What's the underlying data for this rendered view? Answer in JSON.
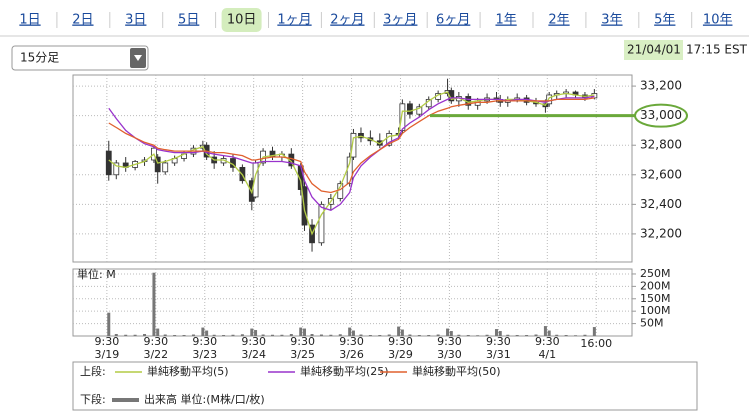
{
  "tabs": [
    "1日",
    "2日",
    "3日",
    "5日",
    "10日",
    "1ヶ月",
    "2ヶ月",
    "3ヶ月",
    "6ヶ月",
    "1年",
    "2年",
    "3年",
    "5年",
    "10年"
  ],
  "selected_tab": 4,
  "interval_select": "15分足",
  "timestamp": {
    "date": "21/04/01",
    "time": "17:15 EST"
  },
  "legend": {
    "upper_label": "上段:",
    "lower_label": "下段:"
  },
  "chart_data": [
    {
      "type": "candlestick",
      "up_color": "#ffffff",
      "down_color": "#333333",
      "grid": true,
      "highlight_tick": 4,
      "x": [
        1,
        5,
        10,
        15,
        20,
        25,
        27,
        31,
        36,
        41,
        46,
        51,
        53,
        57,
        62,
        67,
        72,
        77,
        79,
        83,
        88,
        93,
        98,
        103,
        105,
        109,
        114,
        119,
        124,
        129,
        131,
        135,
        140,
        145,
        150,
        155,
        157,
        161,
        166,
        171,
        176,
        181,
        183,
        187,
        192,
        197,
        202,
        207,
        209,
        213,
        218,
        223,
        228,
        233,
        235,
        239,
        244,
        249,
        254,
        259
      ],
      "open": [
        32760,
        32600,
        32680,
        32650,
        32690,
        32700,
        32720,
        32620,
        32680,
        32710,
        32740,
        32780,
        32800,
        32720,
        32680,
        32710,
        32650,
        32560,
        32450,
        32680,
        32760,
        32720,
        32740,
        32660,
        32520,
        32260,
        32140,
        32400,
        32440,
        32540,
        32720,
        32880,
        32850,
        32830,
        32800,
        32880,
        32900,
        33080,
        33010,
        33060,
        33110,
        33150,
        33170,
        33100,
        33130,
        33070,
        33100,
        33120,
        33110,
        33090,
        33110,
        33120,
        33090,
        33080,
        33080,
        33140,
        33150,
        33160,
        33140,
        33120
      ],
      "high": [
        32830,
        32700,
        32720,
        32700,
        32720,
        32790,
        32740,
        32700,
        32730,
        32760,
        32800,
        32830,
        32820,
        32760,
        32730,
        32740,
        32670,
        32580,
        32700,
        32780,
        32790,
        32760,
        32780,
        32680,
        32560,
        32300,
        32420,
        32470,
        32560,
        32750,
        32910,
        32920,
        32900,
        32880,
        32900,
        32920,
        33110,
        33100,
        33080,
        33130,
        33170,
        33250,
        33190,
        33160,
        33150,
        33120,
        33150,
        33160,
        33140,
        33130,
        33150,
        33140,
        33120,
        33110,
        33160,
        33170,
        33180,
        33170,
        33160,
        33180
      ],
      "low": [
        32560,
        32570,
        32620,
        32630,
        32660,
        32680,
        32540,
        32600,
        32660,
        32690,
        32720,
        32760,
        32700,
        32640,
        32660,
        32620,
        32540,
        32360,
        32440,
        32660,
        32700,
        32690,
        32640,
        32460,
        32220,
        32080,
        32120,
        32360,
        32420,
        32520,
        32700,
        32820,
        32800,
        32780,
        32790,
        32840,
        32880,
        32980,
        32990,
        33040,
        33090,
        33130,
        33080,
        33060,
        33040,
        33040,
        33080,
        33090,
        33060,
        33060,
        33090,
        33070,
        33060,
        33020,
        33060,
        33110,
        33120,
        33120,
        33100,
        33110
      ],
      "close": [
        32600,
        32680,
        32650,
        32690,
        32700,
        32780,
        32620,
        32680,
        32710,
        32740,
        32780,
        32800,
        32720,
        32680,
        32710,
        32650,
        32560,
        32420,
        32680,
        32760,
        32720,
        32740,
        32660,
        32500,
        32260,
        32140,
        32400,
        32440,
        32540,
        32720,
        32880,
        32850,
        32830,
        32800,
        32880,
        32870,
        33080,
        33010,
        33060,
        33110,
        33150,
        33170,
        33100,
        33130,
        33070,
        33100,
        33120,
        33110,
        33090,
        33110,
        33120,
        33090,
        33080,
        33060,
        33140,
        33150,
        33160,
        33140,
        33120,
        33150
      ],
      "series": [
        {
          "name": "単純移動平均(5)",
          "color": "#b3cc45",
          "values": [
            32700,
            32660,
            32650,
            32670,
            32690,
            32740,
            32680,
            32690,
            32710,
            32740,
            32770,
            32790,
            32740,
            32700,
            32700,
            32670,
            32600,
            32480,
            32600,
            32720,
            32730,
            32740,
            32690,
            32560,
            32360,
            32200,
            32330,
            32420,
            32520,
            32680,
            32850,
            32860,
            32840,
            32810,
            32860,
            32870,
            33030,
            33030,
            33050,
            33100,
            33140,
            33160,
            33110,
            33120,
            33090,
            33100,
            33110,
            33110,
            33100,
            33110,
            33110,
            33100,
            33090,
            33070,
            33120,
            33140,
            33150,
            33140,
            33130,
            33140
          ]
        },
        {
          "name": "単純移動平均(25)",
          "color": "#9933cc",
          "values": [
            33050,
            32980,
            32900,
            32850,
            32810,
            32790,
            32770,
            32760,
            32750,
            32750,
            32750,
            32760,
            32750,
            32740,
            32730,
            32720,
            32700,
            32680,
            32680,
            32690,
            32690,
            32690,
            32680,
            32660,
            32560,
            32450,
            32380,
            32360,
            32400,
            32480,
            32580,
            32660,
            32720,
            32770,
            32820,
            32850,
            32910,
            32950,
            32990,
            33040,
            33080,
            33110,
            33120,
            33120,
            33110,
            33110,
            33110,
            33110,
            33110,
            33100,
            33110,
            33110,
            33100,
            33090,
            33100,
            33110,
            33120,
            33120,
            33120,
            33130
          ]
        },
        {
          "name": "単純移動平均(50)",
          "color": "#e0602e",
          "values": [
            32950,
            32920,
            32880,
            32850,
            32820,
            32800,
            32780,
            32770,
            32760,
            32760,
            32760,
            32760,
            32760,
            32750,
            32750,
            32740,
            32730,
            32700,
            32700,
            32710,
            32720,
            32720,
            32710,
            32690,
            32620,
            32540,
            32490,
            32480,
            32500,
            32550,
            32620,
            32680,
            32730,
            32770,
            32810,
            32840,
            32880,
            32920,
            32960,
            33000,
            33030,
            33050,
            33060,
            33070,
            33080,
            33090,
            33090,
            33100,
            33100,
            33100,
            33100,
            33100,
            33100,
            33100,
            33100,
            33110,
            33110,
            33110,
            33110,
            33120
          ]
        }
      ],
      "xlim": [
        -18,
        279
      ],
      "ylim": [
        32010,
        33275
      ],
      "yticks": [
        {
          "value": 32200,
          "label": "32,200"
        },
        {
          "value": 32400,
          "label": "32,400"
        },
        {
          "value": 32600,
          "label": "32,600"
        },
        {
          "value": 32800,
          "label": "32,800"
        },
        {
          "value": 33000,
          "label": "33,000"
        },
        {
          "value": 33200,
          "label": "33,200"
        }
      ]
    },
    {
      "type": "bar",
      "unit_label": "単位: M",
      "grid": true,
      "x": [
        1,
        5,
        10,
        15,
        20,
        25,
        27,
        31,
        36,
        41,
        46,
        51,
        53,
        57,
        62,
        67,
        72,
        77,
        79,
        83,
        88,
        93,
        98,
        103,
        105,
        109,
        114,
        119,
        124,
        129,
        131,
        135,
        140,
        145,
        150,
        155,
        157,
        161,
        166,
        171,
        176,
        181,
        183,
        187,
        192,
        197,
        202,
        207,
        209,
        213,
        218,
        223,
        228,
        233,
        235,
        239,
        244,
        249,
        254,
        259
      ],
      "series": [
        {
          "name": "出来高 単位:(M株/口/枚)",
          "color": "#777777",
          "values": [
            94,
            8,
            5,
            5,
            8,
            255,
            30,
            6,
            4,
            4,
            6,
            34,
            22,
            5,
            4,
            5,
            7,
            30,
            24,
            6,
            5,
            5,
            8,
            34,
            30,
            8,
            6,
            5,
            7,
            34,
            22,
            6,
            4,
            4,
            6,
            38,
            26,
            6,
            4,
            4,
            6,
            30,
            20,
            5,
            4,
            3,
            5,
            28,
            20,
            5,
            4,
            4,
            6,
            40,
            22,
            5,
            4,
            3,
            5,
            36
          ]
        }
      ],
      "xlim": [
        -18,
        279
      ],
      "ylim": [
        0,
        270
      ],
      "yticks": [
        {
          "value": 50,
          "label": "50M"
        },
        {
          "value": 100,
          "label": "100M"
        },
        {
          "value": 150,
          "label": "150M"
        },
        {
          "value": 200,
          "label": "200M"
        },
        {
          "value": 250,
          "label": "250M"
        }
      ],
      "xticks": [
        {
          "value": 0,
          "label": "9:30"
        },
        {
          "value": 26,
          "label": "9:30"
        },
        {
          "value": 52,
          "label": "9:30"
        },
        {
          "value": 78,
          "label": "9:30"
        },
        {
          "value": 104,
          "label": "9:30"
        },
        {
          "value": 130,
          "label": "9:30"
        },
        {
          "value": 156,
          "label": "9:30"
        },
        {
          "value": 182,
          "label": "9:30"
        },
        {
          "value": 208,
          "label": "9:30"
        },
        {
          "value": 234,
          "label": "9:30"
        },
        {
          "value": 260,
          "label": "16:00"
        }
      ],
      "xtick_dates": [
        "3/19",
        "3/22",
        "3/23",
        "3/24",
        "3/25",
        "3/26",
        "3/29",
        "3/30",
        "3/31",
        "4/1",
        null
      ]
    }
  ]
}
